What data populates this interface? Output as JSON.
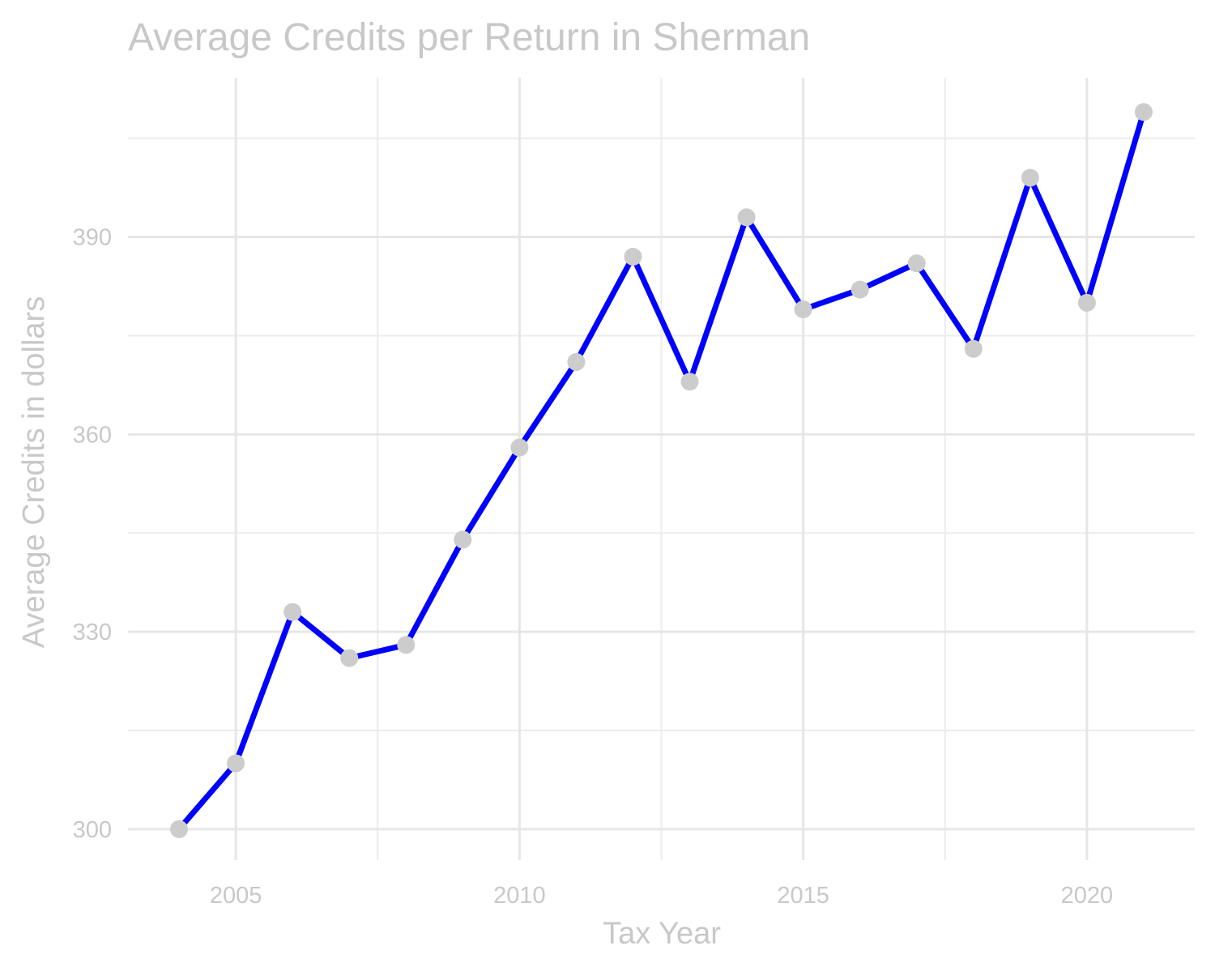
{
  "chart_data": {
    "type": "line",
    "title": "Average Credits per Return in Sherman",
    "xlabel": "Tax Year",
    "ylabel": "Average Credits in dollars",
    "x": [
      2004,
      2005,
      2006,
      2007,
      2008,
      2009,
      2010,
      2011,
      2012,
      2013,
      2014,
      2015,
      2016,
      2017,
      2018,
      2019,
      2020,
      2021
    ],
    "series": [
      {
        "values": [
          300,
          310,
          333,
          326,
          328,
          344,
          358,
          371,
          387,
          368,
          393,
          379,
          382,
          386,
          373,
          399,
          380,
          409
        ]
      }
    ],
    "xlim": [
      2003.1,
      2021.9
    ],
    "ylim": [
      295.3,
      414.2
    ],
    "x_ticks": [
      2005,
      2010,
      2015,
      2020
    ],
    "x_tick_labels": [
      "2005",
      "2010",
      "2015",
      "2020"
    ],
    "y_ticks": [
      300,
      330,
      360,
      390
    ],
    "y_tick_labels": [
      "300",
      "330",
      "360",
      "390"
    ],
    "grid": true,
    "legend": "none",
    "colors": {
      "line": "#0000ff",
      "points": "#cccccc",
      "text": "#c8c8c8",
      "grid": "#e6e6e6",
      "background": "#ffffff"
    }
  }
}
